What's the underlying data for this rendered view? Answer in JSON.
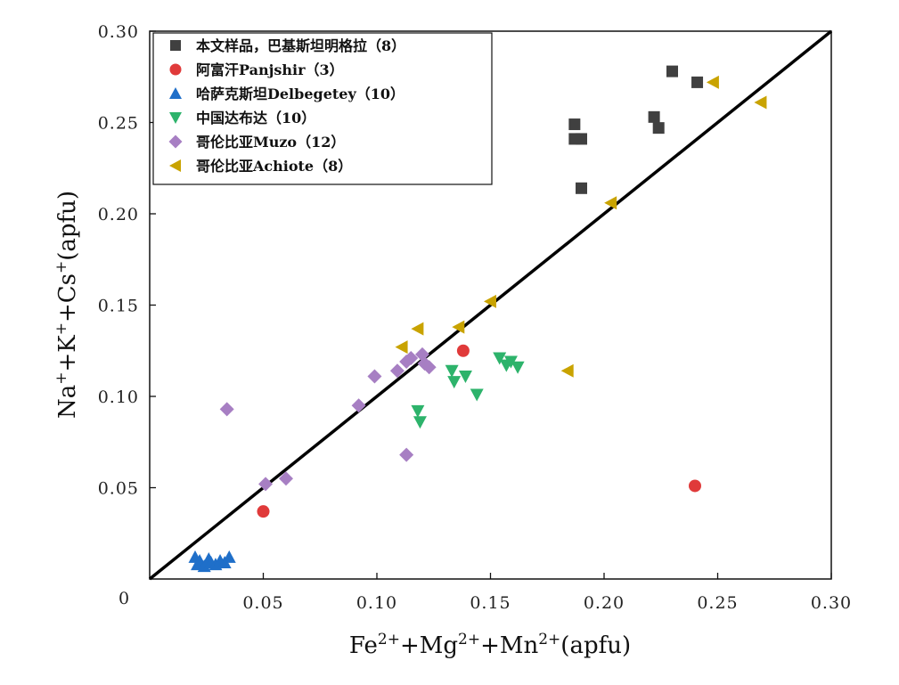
{
  "chart_data": {
    "type": "scatter",
    "xlabel": "Fe2+ + Mg2+ + Mn2+ (apfu)",
    "ylabel": "Na+ + K+ + Cs+ (apfu)",
    "xlim": [
      0,
      0.3
    ],
    "ylim": [
      0,
      0.3
    ],
    "x_ticks": [
      "0.05",
      "0.10",
      "0.15",
      "0.20",
      "0.25",
      "0.30"
    ],
    "y_ticks": [
      "0.05",
      "0.10",
      "0.15",
      "0.20",
      "0.25",
      "0.30"
    ],
    "origin_label": "0",
    "legend_position": "top-left",
    "reference_line": {
      "from": [
        0,
        0
      ],
      "to": [
        0.3,
        0.3
      ],
      "color": "#000000"
    },
    "series": [
      {
        "name": "本文样品，巴基斯坦明格拉（8）",
        "marker": "square",
        "color": "#404040",
        "points": [
          [
            0.187,
            0.249
          ],
          [
            0.187,
            0.241
          ],
          [
            0.19,
            0.241
          ],
          [
            0.19,
            0.214
          ],
          [
            0.222,
            0.253
          ],
          [
            0.224,
            0.247
          ],
          [
            0.23,
            0.278
          ],
          [
            0.241,
            0.272
          ]
        ]
      },
      {
        "name": "阿富汗Panjshir（3）",
        "marker": "circle",
        "color": "#e03a3a",
        "points": [
          [
            0.05,
            0.037
          ],
          [
            0.138,
            0.125
          ],
          [
            0.24,
            0.051
          ]
        ]
      },
      {
        "name": "哈萨克斯坦Delbegetey（10）",
        "marker": "triangle-up",
        "color": "#1f6fc9",
        "points": [
          [
            0.02,
            0.012
          ],
          [
            0.021,
            0.008
          ],
          [
            0.022,
            0.01
          ],
          [
            0.024,
            0.007
          ],
          [
            0.026,
            0.011
          ],
          [
            0.027,
            0.009
          ],
          [
            0.029,
            0.008
          ],
          [
            0.031,
            0.01
          ],
          [
            0.033,
            0.009
          ],
          [
            0.035,
            0.012
          ]
        ]
      },
      {
        "name": "中国达布达（10）",
        "marker": "triangle-down",
        "color": "#2db36b",
        "points": [
          [
            0.118,
            0.092
          ],
          [
            0.119,
            0.086
          ],
          [
            0.133,
            0.114
          ],
          [
            0.134,
            0.108
          ],
          [
            0.139,
            0.111
          ],
          [
            0.144,
            0.101
          ],
          [
            0.154,
            0.121
          ],
          [
            0.157,
            0.117
          ],
          [
            0.159,
            0.119
          ],
          [
            0.162,
            0.116
          ]
        ]
      },
      {
        "name": "哥伦比亚Muzo（12）",
        "marker": "diamond",
        "color": "#a77fc3",
        "points": [
          [
            0.034,
            0.093
          ],
          [
            0.051,
            0.052
          ],
          [
            0.06,
            0.055
          ],
          [
            0.092,
            0.095
          ],
          [
            0.099,
            0.111
          ],
          [
            0.109,
            0.114
          ],
          [
            0.113,
            0.119
          ],
          [
            0.115,
            0.121
          ],
          [
            0.12,
            0.123
          ],
          [
            0.121,
            0.118
          ],
          [
            0.123,
            0.116
          ],
          [
            0.113,
            0.068
          ]
        ]
      },
      {
        "name": "哥伦比亚Achiote（8）",
        "marker": "triangle-left",
        "color": "#c9a300",
        "points": [
          [
            0.111,
            0.127
          ],
          [
            0.118,
            0.137
          ],
          [
            0.136,
            0.138
          ],
          [
            0.15,
            0.152
          ],
          [
            0.184,
            0.114
          ],
          [
            0.203,
            0.206
          ],
          [
            0.248,
            0.272
          ],
          [
            0.269,
            0.261
          ]
        ]
      }
    ]
  }
}
